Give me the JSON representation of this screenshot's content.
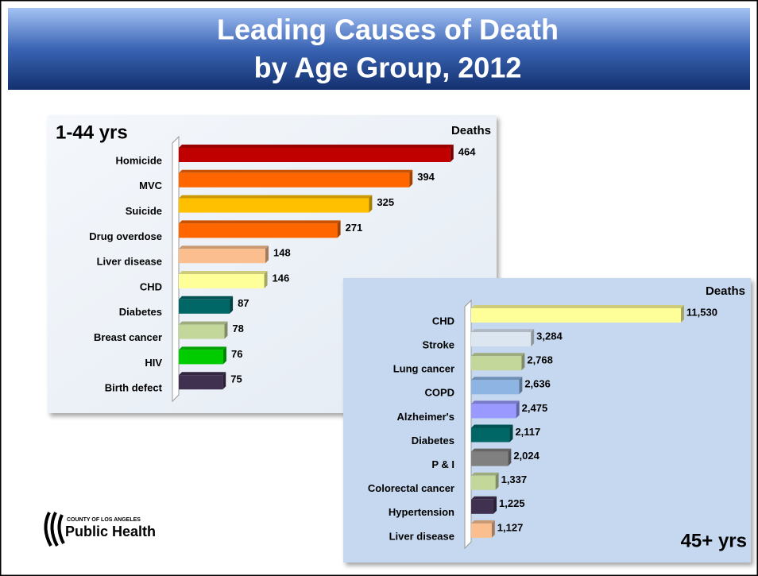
{
  "slide": {
    "title_line1": "Leading Causes of Death",
    "title_line2": "by Age Group, 2012"
  },
  "logo": {
    "line1": "County of Los Angeles",
    "line2": "Public Health"
  },
  "chart_data": [
    {
      "type": "barh",
      "title": "1-44 yrs",
      "x_label": "Deaths",
      "categories": [
        "Homicide",
        "MVC",
        "Suicide",
        "Drug overdose",
        "Liver disease",
        "CHD",
        "Diabetes",
        "Breast cancer",
        "HIV",
        "Birth defect"
      ],
      "values": [
        464,
        394,
        325,
        271,
        148,
        146,
        87,
        78,
        76,
        75
      ],
      "colors": [
        "#c00000",
        "#ff6600",
        "#ffc000",
        "#ff6600",
        "#fbbf8f",
        "#ffff99",
        "#006666",
        "#c4d79b",
        "#00cc00",
        "#403151"
      ],
      "xlim": [
        0,
        520
      ]
    },
    {
      "type": "barh",
      "title": "45+ yrs",
      "x_label": "Deaths",
      "categories": [
        "CHD",
        "Stroke",
        "Lung cancer",
        "COPD",
        "Alzheimer's",
        "Diabetes",
        "P & I",
        "Colorectal cancer",
        "Hypertension",
        "Liver disease"
      ],
      "values": [
        11530,
        3284,
        2768,
        2636,
        2475,
        2117,
        2024,
        1337,
        1225,
        1127
      ],
      "value_labels": [
        "11,530",
        "3,284",
        "2,768",
        "2,636",
        "2,475",
        "2,117",
        "2,024",
        "1,337",
        "1,225",
        "1,127"
      ],
      "colors": [
        "#ffff99",
        "#dce6f1",
        "#c4d79b",
        "#8db4e2",
        "#9999ff",
        "#006666",
        "#808080",
        "#c4d79b",
        "#403151",
        "#fbbf8f"
      ],
      "xlim": [
        0,
        13500
      ]
    }
  ]
}
